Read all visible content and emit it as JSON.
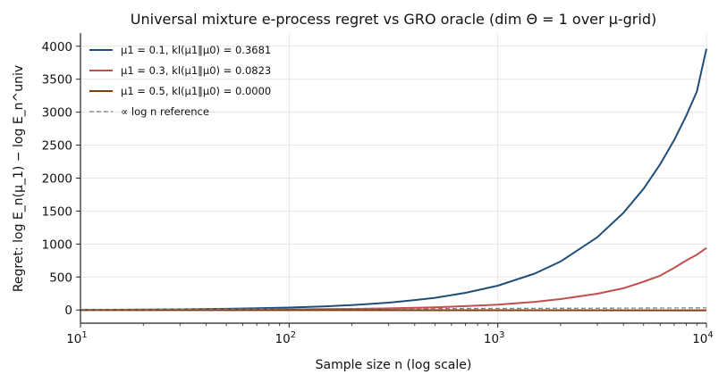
{
  "chart_data": {
    "type": "line",
    "title": "Universal mixture e-process regret vs GRO oracle (dim Θ = 1 over μ-grid)",
    "xlabel": "Sample size n (log scale)",
    "ylabel": "Regret: log E_n(μ_1) − log E_n^univ",
    "xscale": "log",
    "xlim": [
      10,
      10000
    ],
    "ylim": [
      -200,
      4200
    ],
    "x_ticks": [
      {
        "value": 10,
        "base": "10",
        "exp": "1"
      },
      {
        "value": 100,
        "base": "10",
        "exp": "2"
      },
      {
        "value": 1000,
        "base": "10",
        "exp": "3"
      },
      {
        "value": 10000,
        "base": "10",
        "exp": "4"
      }
    ],
    "y_ticks": [
      0,
      500,
      1000,
      1500,
      2000,
      2500,
      3000,
      3500,
      4000
    ],
    "grid": true,
    "legend_position": "top-left",
    "series": [
      {
        "name": "μ1 = 0.1, kl(μ1‖μ0) = 0.3681",
        "color": "#1f4e79",
        "style": "solid",
        "x": [
          10,
          20,
          30,
          50,
          70,
          100,
          150,
          200,
          300,
          400,
          500,
          700,
          1000,
          1500,
          2000,
          3000,
          4000,
          5000,
          6000,
          7000,
          8000,
          9000,
          10000
        ],
        "y": [
          2,
          6,
          10,
          18,
          26,
          37,
          56,
          75,
          112,
          150,
          185,
          260,
          368,
          552,
          736,
          1104,
          1472,
          1840,
          2209,
          2577,
          2945,
          3313,
          3960
        ]
      },
      {
        "name": "μ1 = 0.3, kl(μ1‖μ0) = 0.0823",
        "color": "#c0504d",
        "style": "solid",
        "x": [
          10,
          20,
          30,
          50,
          70,
          100,
          150,
          200,
          300,
          400,
          500,
          700,
          1000,
          1500,
          2000,
          3000,
          4000,
          5000,
          6000,
          7000,
          8000,
          9000,
          10000
        ],
        "y": [
          0,
          1,
          2,
          4,
          6,
          8,
          12,
          16,
          25,
          33,
          41,
          58,
          82,
          123,
          165,
          247,
          329,
          430,
          520,
          640,
          750,
          840,
          940
        ]
      },
      {
        "name": "μ1 = 0.5, kl(μ1‖μ0) = 0.0000",
        "color": "#843c0c",
        "style": "solid",
        "x": [
          10,
          100,
          1000,
          10000
        ],
        "y": [
          0,
          -2,
          -4,
          -5
        ]
      },
      {
        "name": "∝ log n reference",
        "color": "#808080",
        "style": "dashed",
        "x": [
          10,
          100,
          1000,
          10000
        ],
        "y": [
          8,
          16,
          24,
          32
        ]
      }
    ]
  }
}
